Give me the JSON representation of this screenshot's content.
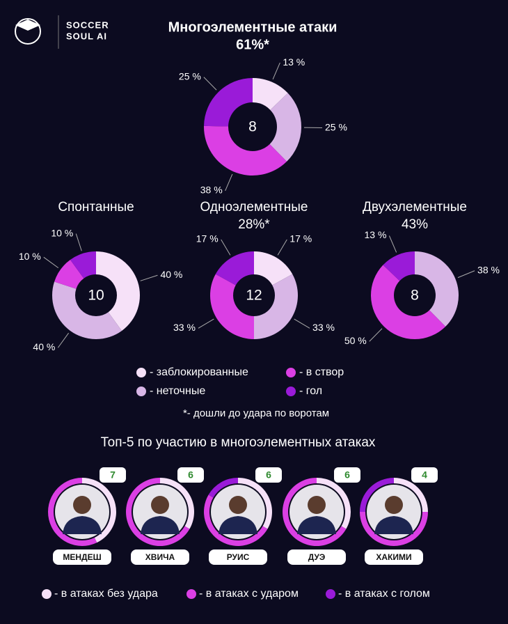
{
  "logo": {
    "line1": "SOCCER",
    "line2": "SOUL AI"
  },
  "chart_data": [
    {
      "type": "donut",
      "title": "Многоэлементные атаки",
      "subtitle": "61%*",
      "total": 8,
      "categories": [
        "заблокированные",
        "неточные",
        "в створ",
        "гол"
      ],
      "values": [
        13,
        25,
        38,
        25
      ],
      "value_labels": [
        "13 %",
        "25 %",
        "38 %",
        "25 %"
      ],
      "colors": [
        "#f6e1f8",
        "#d8b6e6",
        "#db3fe4",
        "#9a1bd8"
      ]
    },
    {
      "type": "donut",
      "title": "Спонтанные",
      "total": 10,
      "categories": [
        "заблокированные",
        "неточные",
        "в створ",
        "гол"
      ],
      "values": [
        40,
        40,
        10,
        10
      ],
      "value_labels": [
        "40 %",
        "40 %",
        "10 %",
        "10 %"
      ],
      "colors": [
        "#f6e1f8",
        "#d8b6e6",
        "#db3fe4",
        "#9a1bd8"
      ]
    },
    {
      "type": "donut",
      "title": "Одноэлементные",
      "subtitle": "28%*",
      "total": 12,
      "categories": [
        "заблокированные",
        "неточные",
        "в створ",
        "гол"
      ],
      "values": [
        17,
        33,
        33,
        17
      ],
      "value_labels": [
        "17 %",
        "33 %",
        "33 %",
        "17 %"
      ],
      "colors": [
        "#f6e1f8",
        "#d8b6e6",
        "#db3fe4",
        "#9a1bd8"
      ]
    },
    {
      "type": "donut",
      "title": "Двухэлементные",
      "subtitle": "43%",
      "total": 8,
      "categories": [
        "неточные",
        "в створ",
        "гол"
      ],
      "values": [
        38,
        50,
        13
      ],
      "value_labels": [
        "38 %",
        "50 %",
        "13 %"
      ],
      "colors": [
        "#d8b6e6",
        "#db3fe4",
        "#9a1bd8"
      ]
    }
  ],
  "legend": {
    "items": [
      {
        "label": "- заблокированные",
        "color": "#f6e1f8"
      },
      {
        "label": "- в створ",
        "color": "#db3fe4"
      },
      {
        "label": "- неточные",
        "color": "#d8b6e6"
      },
      {
        "label": "- гол",
        "color": "#9a1bd8"
      }
    ]
  },
  "footnote": "*- дошли до удара по воротам",
  "top5": {
    "title": "Топ-5 по участию в многоэлементных атаках",
    "players": [
      {
        "name": "МЕНДЕШ",
        "count": 7,
        "segments": [
          3,
          4,
          0
        ]
      },
      {
        "name": "ХВИЧА",
        "count": 6,
        "segments": [
          2,
          4,
          0
        ]
      },
      {
        "name": "РУИС",
        "count": 6,
        "segments": [
          2,
          3,
          1
        ]
      },
      {
        "name": "ДУЭ",
        "count": 6,
        "segments": [
          2,
          4,
          0
        ]
      },
      {
        "name": "ХАКИМИ",
        "count": 4,
        "segments": [
          1,
          2,
          1
        ]
      }
    ],
    "legend": [
      {
        "label": "- в атаках без удара",
        "color": "#f6e1f8"
      },
      {
        "label": "- в атаках с ударом",
        "color": "#db3fe4"
      },
      {
        "label": "- в атаках с голом",
        "color": "#9a1bd8"
      }
    ]
  }
}
